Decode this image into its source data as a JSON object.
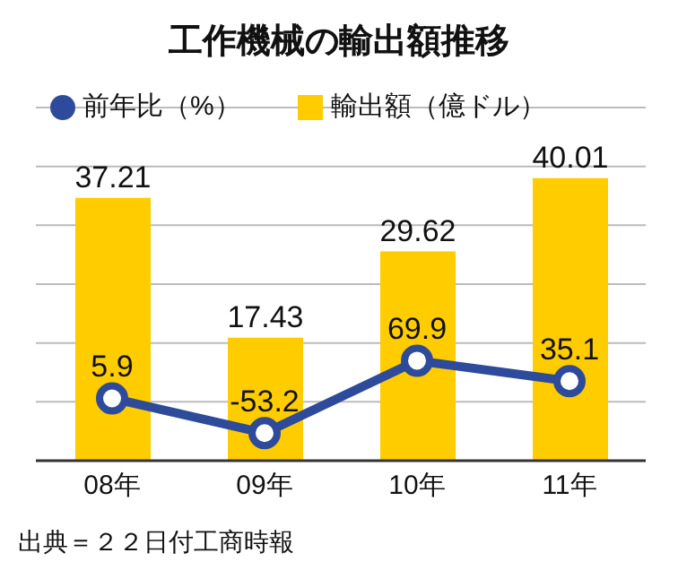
{
  "chart_data": {
    "type": "bar",
    "title": "工作機械の輸出額推移",
    "categories": [
      "08年",
      "09年",
      "10年",
      "11年"
    ],
    "series": [
      {
        "name": "前年比（%）",
        "type": "line",
        "axis": "y2",
        "color": "#2e4a9a",
        "values": [
          5.9,
          -53.2,
          69.9,
          35.1
        ]
      },
      {
        "name": "輸出額（億ドル）",
        "color": "#ffcc00",
        "values": [
          37.21,
          17.43,
          29.62,
          40.01
        ]
      }
    ],
    "ylim": [
      0,
      50
    ],
    "y2lim": [
      -100,
      500
    ],
    "tick_labels": "x",
    "grid": true,
    "legend": "top left",
    "marker": "circle",
    "data_labels": true,
    "annotations": [
      "出典＝２２日付工商時報"
    ]
  }
}
